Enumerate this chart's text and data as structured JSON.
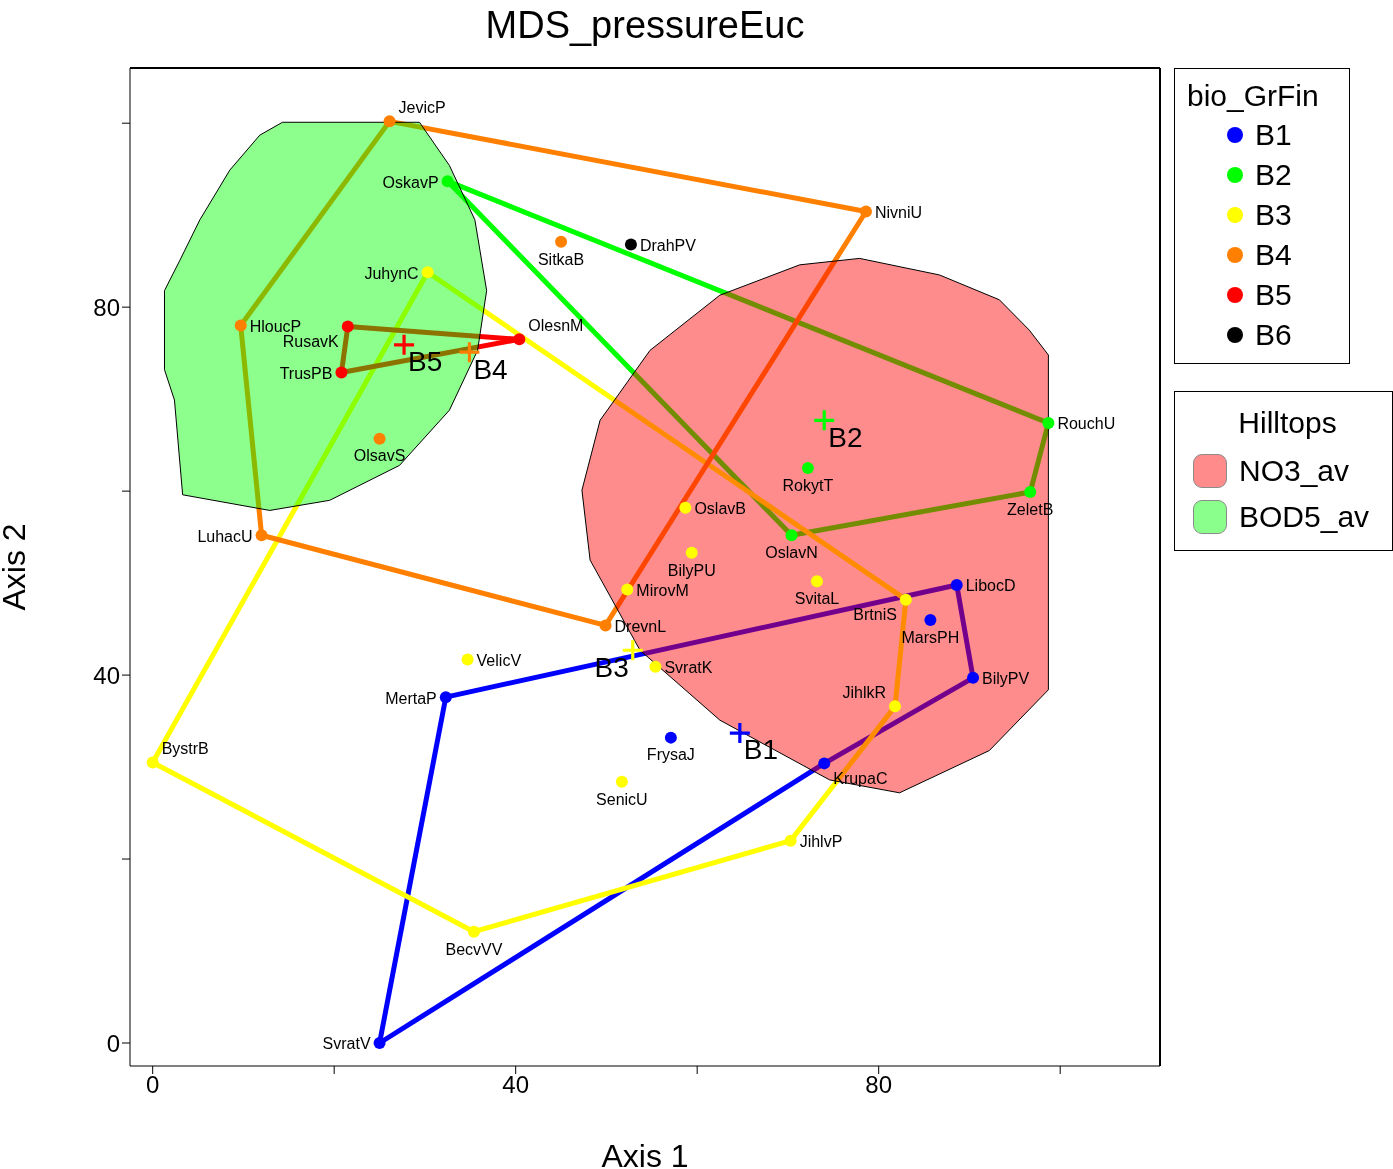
{
  "chart_data": {
    "type": "scatter",
    "title": "MDS_pressureEuc",
    "xlabel": "Axis 1",
    "ylabel": "Axis 2",
    "legend_title": "bio_GrFin",
    "legend": "right",
    "grid": false,
    "marker": "circle",
    "xlim": [
      -2.5,
      111
    ],
    "ylim": [
      -2.5,
      106
    ],
    "xticks": [
      0,
      {
        "value": 20,
        "label": null
      },
      40,
      {
        "value": 60,
        "label": null
      },
      80,
      {
        "value": 100,
        "label": null
      }
    ],
    "yticks": [
      0,
      {
        "value": 20,
        "label": null
      },
      40,
      {
        "value": 60,
        "label": null
      },
      80,
      {
        "value": 100,
        "label": null
      }
    ],
    "annotations": [
      "Hilltops"
    ],
    "series": [
      {
        "type": "area",
        "name": "NO3_av",
        "color": "#ff0000",
        "marker": "none",
        "x": [
          77.9,
          86.7,
          93.3,
          96.6,
          98.7,
          98.7,
          92.2,
          82.3,
          74.6,
          62.5,
          53.7,
          48.2,
          47.3,
          49.3,
          54.8,
          62.5,
          71.3
        ],
        "values": [
          85.3,
          83.5,
          80.8,
          77.5,
          74.8,
          38.4,
          31.8,
          27.2,
          28.6,
          35.1,
          42.7,
          52.5,
          60.1,
          67.7,
          75.3,
          81.3,
          84.6
        ]
      },
      {
        "type": "area",
        "name": "BOD5_av",
        "color": "#00ff00",
        "marker": "none",
        "x": [
          14.3,
          29.4,
          32.7,
          35.5,
          36.8,
          35.8,
          32.7,
          27.2,
          19.5,
          12.9,
          3.3,
          2.4,
          1.3,
          1.3,
          3.0,
          5.2,
          8.5,
          11.8
        ],
        "values": [
          100.1,
          100.1,
          95.4,
          89.5,
          81.8,
          75.3,
          68.8,
          62.8,
          59.0,
          57.9,
          59.6,
          69.9,
          73.2,
          81.8,
          85.1,
          89.5,
          94.9,
          98.7
        ]
      },
      {
        "type": "line",
        "marker": "none",
        "color": "#0000ff",
        "x": [
          25.0,
          32.3,
          88.6,
          90.4
        ],
        "values": [
          0,
          37.6,
          49.8,
          39.7
        ]
      },
      {
        "type": "line",
        "marker": "none",
        "color": "#0000ff",
        "x": [
          25.0,
          74.0,
          90.4
        ],
        "values": [
          0,
          30.4,
          39.7
        ]
      },
      {
        "type": "line",
        "marker": "none",
        "color": "#00ff00",
        "x": [
          32.5,
          98.7
        ],
        "values": [
          93.7,
          67.4
        ]
      },
      {
        "type": "line",
        "marker": "none",
        "color": "#00ff00",
        "x": [
          32.5,
          70.4,
          96.7,
          98.7
        ],
        "values": [
          93.7,
          55.2,
          59.9,
          67.4
        ]
      },
      {
        "type": "line",
        "marker": "none",
        "color": "#ffff00",
        "x": [
          0,
          30.3,
          83.0
        ],
        "values": [
          30.5,
          83.8,
          48.2
        ]
      },
      {
        "type": "line",
        "marker": "none",
        "color": "#ffff00",
        "x": [
          0,
          35.4,
          70.3,
          81.8,
          83.0
        ],
        "values": [
          30.5,
          12.1,
          22.0,
          36.6,
          48.2
        ]
      },
      {
        "type": "line",
        "marker": "none",
        "color": "#ff8000",
        "x": [
          9.7,
          26.1,
          78.6
        ],
        "values": [
          78.0,
          100.2,
          90.4
        ]
      },
      {
        "type": "line",
        "marker": "none",
        "color": "#ff8000",
        "x": [
          9.7,
          12.0,
          49.9,
          78.6
        ],
        "values": [
          78.0,
          55.2,
          45.4,
          90.4
        ]
      },
      {
        "type": "line",
        "marker": "none",
        "color": "#ff0000",
        "x": [
          20.8,
          21.5,
          40.4
        ],
        "values": [
          72.9,
          77.9,
          76.5
        ]
      },
      {
        "type": "line",
        "marker": "none",
        "color": "#ff0000",
        "x": [
          20.8,
          40.4
        ],
        "values": [
          72.9,
          76.5
        ]
      },
      {
        "name": "B1",
        "color": "#0000ff",
        "x": [
          32.3,
          88.6,
          90.4,
          74.0,
          25.0,
          57.1,
          85.7
        ],
        "values": [
          37.6,
          49.8,
          39.7,
          30.4,
          0,
          33.2,
          46.0
        ],
        "value_labels": [
          "MertaP",
          "LibocD",
          "BilyPV",
          "KrupaC",
          "SvratV",
          "FrysaJ",
          "MarsPH"
        ]
      },
      {
        "name": "B2",
        "color": "#00ff00",
        "x": [
          32.5,
          98.7,
          96.7,
          70.4,
          72.2
        ],
        "values": [
          93.7,
          67.4,
          59.9,
          55.2,
          62.5
        ],
        "value_labels": [
          "OskavP",
          "RouchU",
          "ZeletB",
          "OslavN",
          "RokytT"
        ]
      },
      {
        "name": "B3",
        "color": "#ffff00",
        "x": [
          30.3,
          83.0,
          81.8,
          70.3,
          35.4,
          0,
          34.7,
          55.4,
          51.7,
          58.7,
          59.4,
          73.2,
          52.3
        ],
        "values": [
          83.8,
          48.2,
          36.6,
          22.0,
          12.1,
          30.5,
          41.7,
          40.9,
          28.4,
          58.2,
          53.3,
          50.2,
          49.3
        ],
        "value_labels": [
          "JuhynC",
          "BrtniS",
          "JihlkR",
          "JihlvP",
          "BecvVV",
          "BystrB",
          "VelicV",
          "SvratK",
          "SenicU",
          "OslavB",
          "BilyPU",
          "SvitaL",
          "MirovM"
        ]
      },
      {
        "name": "B4",
        "color": "#ff8000",
        "x": [
          26.1,
          78.6,
          45.0,
          9.7,
          12.0,
          49.9,
          25.0
        ],
        "values": [
          100.2,
          90.4,
          87.1,
          78.0,
          55.2,
          45.4,
          65.7
        ],
        "value_labels": [
          "JevicP",
          "NivniU",
          "SitkaB",
          "HloucP",
          "LuhacU",
          "DrevnL",
          "OlsavS"
        ]
      },
      {
        "name": "B5",
        "color": "#ff0000",
        "x": [
          21.5,
          20.8,
          40.4
        ],
        "values": [
          77.9,
          72.9,
          76.5
        ],
        "value_labels": [
          "RusavK",
          "TrusPB",
          "OlesnM"
        ]
      },
      {
        "name": "B6",
        "color": "#000000",
        "x": [
          52.7
        ],
        "values": [
          86.8
        ],
        "value_labels": [
          "DrahPV"
        ]
      },
      {
        "marker": "cross",
        "colors": [
          "#0000ff",
          "#00ff00",
          "#ffff00",
          "#ff8000",
          "#ff0000"
        ],
        "x": [
          64.7,
          74.0,
          52.9,
          34.9,
          27.7
        ],
        "values": [
          33.7,
          67.7,
          42.7,
          75.1,
          75.9
        ],
        "value_labels": [
          "B1",
          "B2",
          "B3",
          "B4",
          "B5"
        ]
      }
    ]
  }
}
